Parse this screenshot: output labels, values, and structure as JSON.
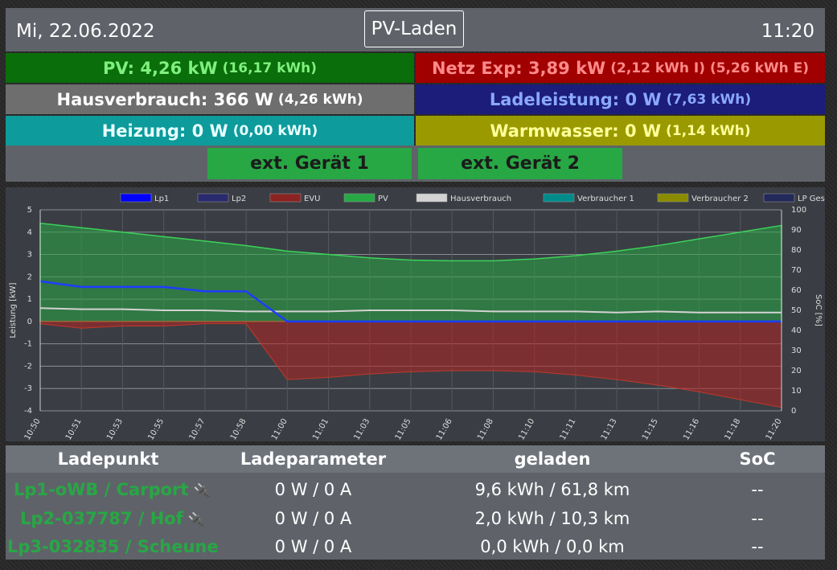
{
  "header": {
    "date": "Mi, 22.06.2022",
    "mode": "PV-Laden",
    "time": "11:20"
  },
  "tiles": {
    "pv": {
      "main": "PV: 4,26 kW",
      "sub": "(16,17 kWh)"
    },
    "netz": {
      "main": "Netz Exp: 3,89 kW",
      "sub": "(2,12 kWh I) (5,26 kWh E)"
    },
    "haus": {
      "main": "Hausverbrauch: 366 W",
      "sub": "(4,26 kWh)"
    },
    "lade": {
      "main": "Ladeleistung: 0 W",
      "sub": "(7,63 kWh)"
    },
    "heizung": {
      "main": "Heizung: 0 W",
      "sub": "(0,00 kWh)"
    },
    "warmwasser": {
      "main": "Warmwasser: 0 W",
      "sub": "(1,14 kWh)"
    }
  },
  "buttons": {
    "ext1": "ext. Gerät 1",
    "ext2": "ext. Gerät 2"
  },
  "colors": {
    "pv": "#28a745",
    "evu": "#b22222",
    "lp1": "#0000ff",
    "haus": "#d3d3d3"
  },
  "chart_data": {
    "type": "area",
    "legend": [
      "Lp1",
      "Lp2",
      "EVU",
      "PV",
      "Hausverbrauch",
      "Verbraucher 1",
      "Verbraucher 2",
      "LP Gesamt"
    ],
    "legend_colors": [
      "#0000ff",
      "#2a2a6e",
      "#8b2323",
      "#28a745",
      "#d3d3d3",
      "#008b8b",
      "#8b8b00",
      "#232a5a"
    ],
    "ylabel": "Leistung [kW]",
    "y2label": "SoC [%]",
    "ylim": [
      -4,
      5
    ],
    "y2lim": [
      0,
      100
    ],
    "yticks": [
      "5",
      "4",
      "3",
      "2",
      "1",
      "0",
      "-1",
      "-2",
      "-3",
      "-4"
    ],
    "y2ticks": [
      "100",
      "90",
      "80",
      "70",
      "60",
      "50",
      "40",
      "30",
      "20",
      "10",
      "0"
    ],
    "xticks": [
      "10:50",
      "10:51",
      "10:53",
      "10:55",
      "10:57",
      "10:58",
      "11:00",
      "11:01",
      "11:03",
      "11:05",
      "11:06",
      "11:08",
      "11:10",
      "11:11",
      "11:13",
      "11:15",
      "11:16",
      "11:18",
      "11:20"
    ],
    "pv": [
      4.4,
      4.2,
      4.0,
      3.8,
      3.6,
      3.4,
      3.15,
      3.0,
      2.85,
      2.75,
      2.72,
      2.72,
      2.8,
      2.95,
      3.15,
      3.4,
      3.7,
      4.0,
      4.3
    ],
    "evu": [
      -0.1,
      -0.3,
      -0.2,
      -0.2,
      -0.1,
      -0.1,
      -2.6,
      -2.5,
      -2.35,
      -2.25,
      -2.2,
      -2.2,
      -2.25,
      -2.4,
      -2.6,
      -2.85,
      -3.15,
      -3.5,
      -3.85
    ],
    "lp1": [
      1.8,
      1.55,
      1.55,
      1.55,
      1.35,
      1.35,
      0,
      0,
      0,
      0,
      0,
      0,
      0,
      0,
      0,
      0,
      0,
      0,
      0
    ],
    "hausverbrauch": [
      0.6,
      0.55,
      0.55,
      0.5,
      0.5,
      0.45,
      0.45,
      0.45,
      0.5,
      0.5,
      0.5,
      0.45,
      0.45,
      0.45,
      0.4,
      0.45,
      0.4,
      0.4,
      0.4
    ]
  },
  "table": {
    "headers": [
      "Ladepunkt",
      "Ladeparameter",
      "geladen",
      "SoC"
    ],
    "rows": [
      {
        "name": "Lp1-oWB / Carport",
        "param": "0 W / 0 A",
        "geladen": "9,6 kWh / 61,8 km",
        "soc": "--",
        "plug": true
      },
      {
        "name": "Lp2-037787 / Hof",
        "param": "0 W / 0 A",
        "geladen": "2,0 kWh / 10,3 km",
        "soc": "--",
        "plug": true
      },
      {
        "name": "Lp3-032835 / Scheune",
        "param": "0 W / 0 A",
        "geladen": "0,0 kWh / 0,0 km",
        "soc": "--",
        "plug": false
      }
    ]
  }
}
